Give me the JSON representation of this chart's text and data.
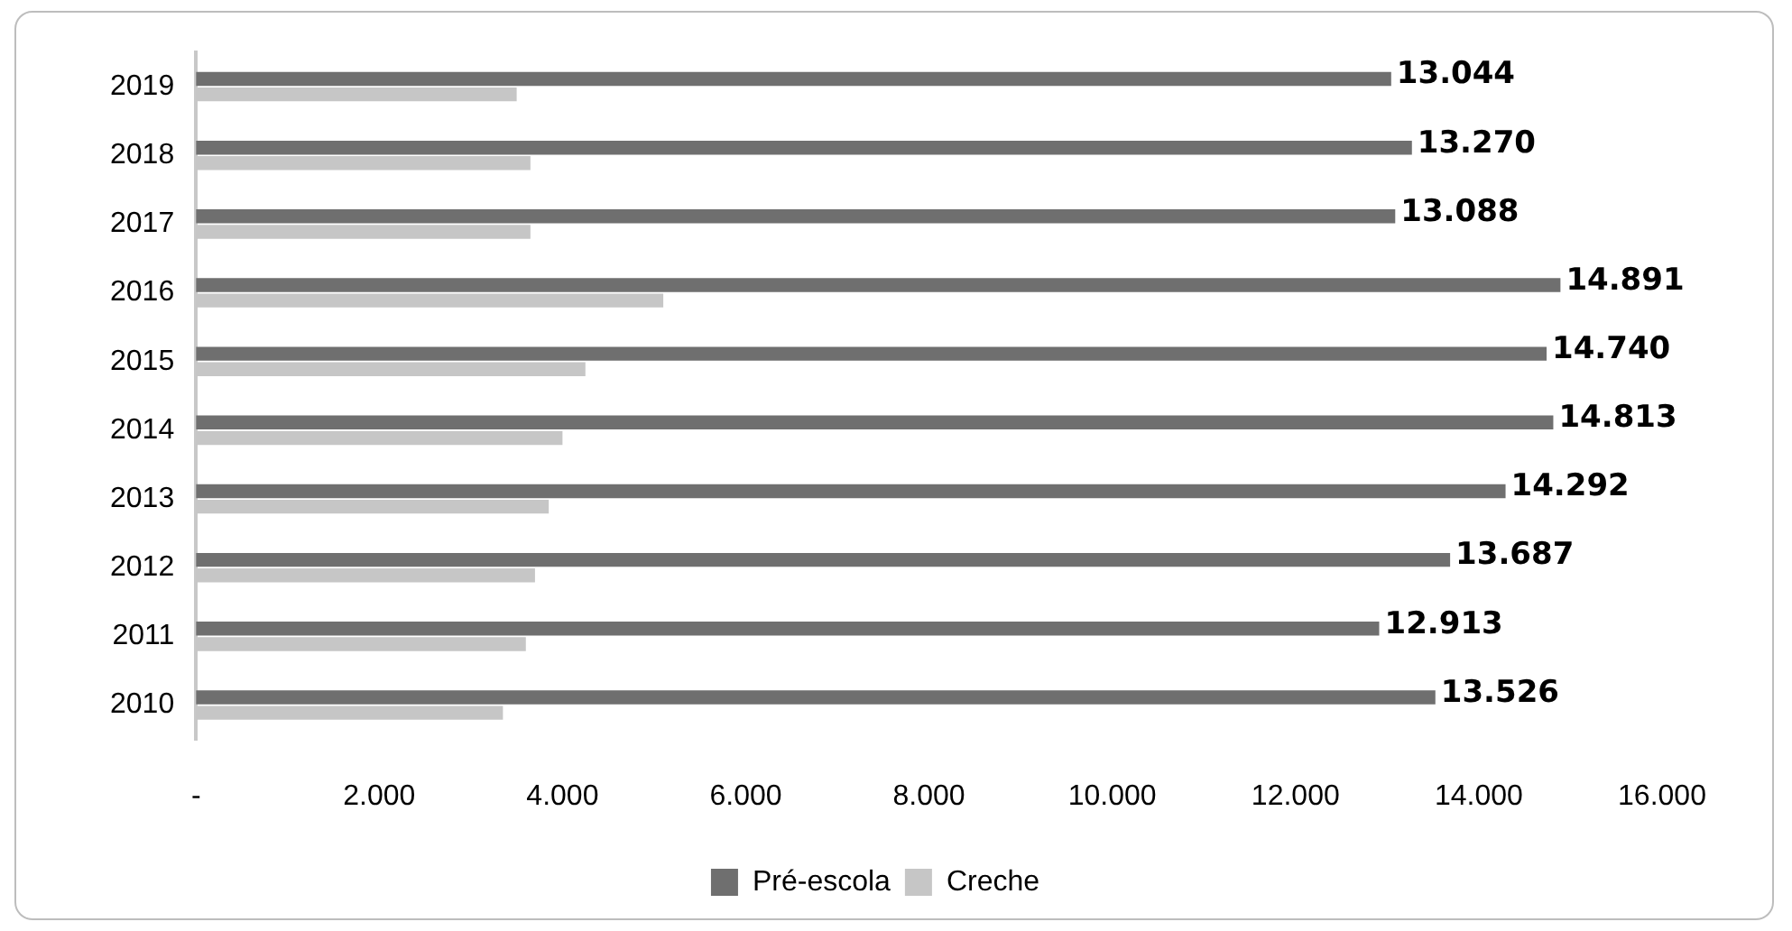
{
  "chart_data": {
    "type": "bar",
    "orientation": "horizontal",
    "categories": [
      "2019",
      "2018",
      "2017",
      "2016",
      "2015",
      "2014",
      "2013",
      "2012",
      "2011",
      "2010"
    ],
    "series": [
      {
        "name": "Pré-escola",
        "color": "#6f6f6f",
        "values": [
          13044,
          13270,
          13088,
          14891,
          14740,
          14813,
          14292,
          13687,
          12913,
          13526
        ],
        "value_labels": [
          "13.044",
          "13.270",
          "13.088",
          "14.891",
          "14.740",
          "14.813",
          "14.292",
          "13.687",
          "12.913",
          "13.526"
        ]
      },
      {
        "name": "Creche",
        "color": "#c6c6c6",
        "values": [
          3500,
          3650,
          3650,
          5100,
          4250,
          4000,
          3850,
          3700,
          3600,
          3350
        ]
      }
    ],
    "xlim": [
      0,
      16000
    ],
    "xticks": [
      {
        "value": 0,
        "label": "-"
      },
      {
        "value": 2000,
        "label": "2.000"
      },
      {
        "value": 4000,
        "label": "4.000"
      },
      {
        "value": 6000,
        "label": "6.000"
      },
      {
        "value": 8000,
        "label": "8.000"
      },
      {
        "value": 10000,
        "label": "10.000"
      },
      {
        "value": 12000,
        "label": "12.000"
      },
      {
        "value": 14000,
        "label": "14.000"
      },
      {
        "value": 16000,
        "label": "16.000"
      }
    ],
    "grid": false,
    "legend": "bottom"
  }
}
